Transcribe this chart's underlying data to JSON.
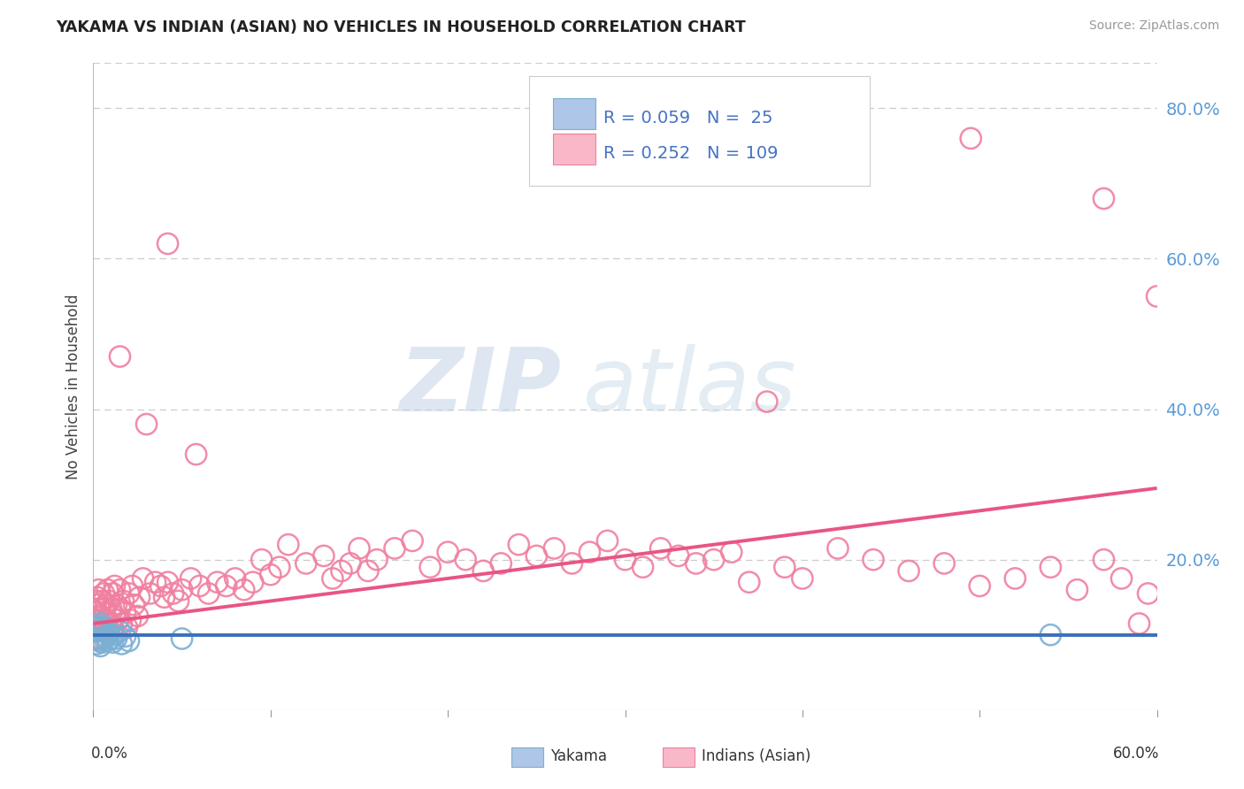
{
  "title": "YAKAMA VS INDIAN (ASIAN) NO VEHICLES IN HOUSEHOLD CORRELATION CHART",
  "source": "Source: ZipAtlas.com",
  "ylabel": "No Vehicles in Household",
  "legend_r": [
    0.059,
    0.252
  ],
  "legend_n": [
    25,
    109
  ],
  "blue_scatter_color": "#aec6e8",
  "blue_edge_color": "#7bafd4",
  "pink_scatter_color": "#f9b8c8",
  "pink_edge_color": "#f080a0",
  "blue_line_color": "#3a6fba",
  "pink_line_color": "#e85585",
  "xmin": 0.0,
  "xmax": 0.6,
  "ymin": 0.0,
  "ymax": 0.86,
  "yticks": [
    0.2,
    0.4,
    0.6,
    0.8
  ],
  "ytick_labels": [
    "20.0%",
    "40.0%",
    "60.0%",
    "80.0%"
  ],
  "watermark_zip": "ZIP",
  "watermark_atlas": "atlas",
  "background_color": "#ffffff",
  "grid_color": "#cccccc",
  "blue_line_y": [
    0.1,
    0.1
  ],
  "pink_line_y": [
    0.115,
    0.295
  ]
}
